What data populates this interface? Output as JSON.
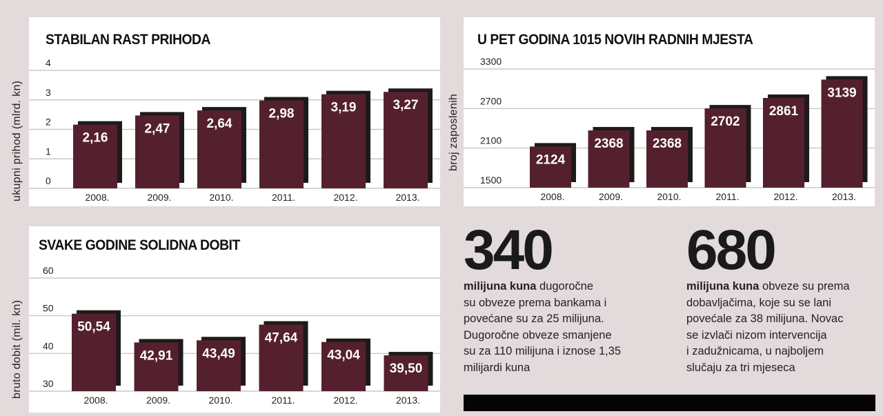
{
  "colors": {
    "background": "#e3dadb",
    "panel": "#ffffff",
    "bar": "#55202e",
    "bar_shadow": "#1e1a1a",
    "grid": "#bdbdbd",
    "text": "#111111"
  },
  "chart_data": [
    {
      "type": "bar",
      "title": "STABILAN RAST PRIHODA",
      "xlabel": "",
      "ylabel": "ukupni prihod (mlrd. kn)",
      "categories": [
        "2008.",
        "2009.",
        "2010.",
        "2011.",
        "2012.",
        "2013."
      ],
      "values": [
        2.16,
        2.47,
        2.64,
        2.98,
        3.19,
        3.27
      ],
      "value_labels": [
        "2,16",
        "2,47",
        "2,64",
        "2,98",
        "3,19",
        "3,27"
      ],
      "yticks": [
        "0",
        "1",
        "2",
        "3",
        "4"
      ],
      "ytick_values": [
        0,
        1,
        2,
        3,
        4
      ],
      "ylim": [
        0,
        4
      ],
      "grid": true,
      "legend": "none"
    },
    {
      "type": "bar",
      "title": "U PET GODINA 1015 NOVIH RADNIH MJESTA",
      "xlabel": "",
      "ylabel": "broj zaposlenih",
      "categories": [
        "2008.",
        "2009.",
        "2010.",
        "2011.",
        "2012.",
        "2013."
      ],
      "values": [
        2124,
        2368,
        2368,
        2702,
        2861,
        3139
      ],
      "value_labels": [
        "2124",
        "2368",
        "2368",
        "2702",
        "2861",
        "3139"
      ],
      "yticks": [
        "1500",
        "2100",
        "2700",
        "3300"
      ],
      "ytick_values": [
        1500,
        2100,
        2700,
        3300
      ],
      "ylim": [
        1500,
        3300
      ],
      "grid": true,
      "legend": "none"
    },
    {
      "type": "bar",
      "title": "SVAKE GODINE SOLIDNA DOBIT",
      "xlabel": "",
      "ylabel": "bruto dobit (mil. kn)",
      "categories": [
        "2008.",
        "2009.",
        "2010.",
        "2011.",
        "2012.",
        "2013."
      ],
      "values": [
        50.54,
        42.91,
        43.49,
        47.64,
        43.04,
        39.5
      ],
      "value_labels": [
        "50,54",
        "42,91",
        "43,49",
        "47,64",
        "43,04",
        "39,50"
      ],
      "yticks": [
        "30",
        "40",
        "50",
        "60"
      ],
      "ytick_values": [
        30,
        40,
        50,
        60
      ],
      "ylim": [
        30,
        60
      ],
      "grid": true,
      "legend": "none"
    }
  ],
  "facts": [
    {
      "number": "340",
      "bold_lead": "milijuna kuna",
      "lines": [
        " dugoročne",
        "su obveze prema bankama i",
        "povećane su za 25 milijuna.",
        "Dugoročne obveze smanjene",
        "su za 110 milijuna i iznose 1,35",
        "milijardi kuna"
      ]
    },
    {
      "number": "680",
      "bold_lead": "milijuna kuna",
      "lines": [
        " obveze su prema",
        "dobavljačima, koje su se lani",
        "povećale za 38 milijuna. Novac",
        "se izvlači nizom intervencija",
        "i zadužnicama, u najboljem",
        "slučaju za tri mjeseca"
      ]
    }
  ]
}
